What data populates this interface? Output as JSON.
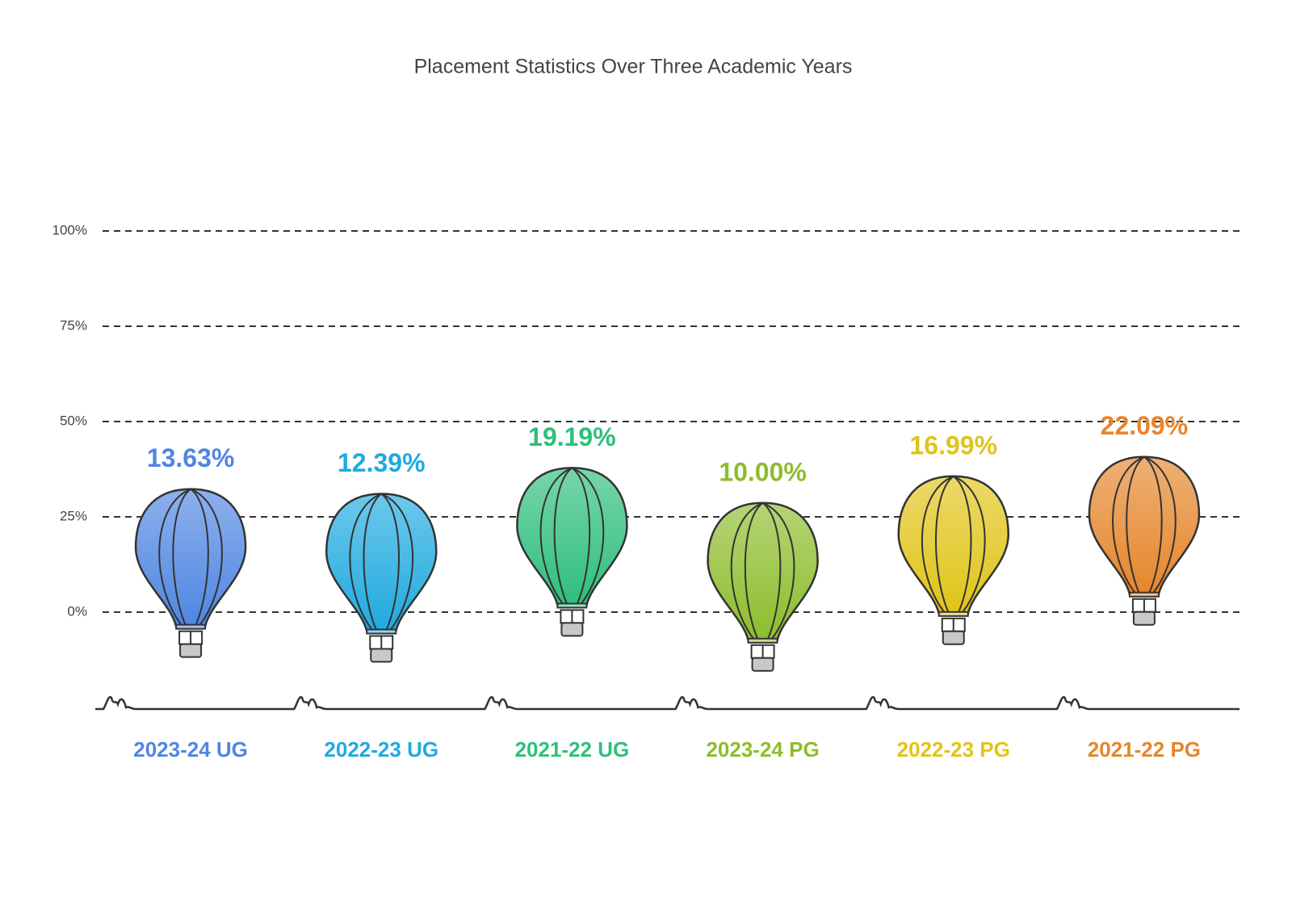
{
  "chart_data": {
    "type": "balloon",
    "title": "Placement Statistics Over Three Academic Years",
    "categories": [
      "2023-24 UG",
      "2022-23 UG",
      "2021-22 UG",
      "2023-24 PG",
      "2022-23 PG",
      "2021-22 PG"
    ],
    "values": [
      13.63,
      12.39,
      19.19,
      10.0,
      16.99,
      22.09
    ],
    "value_labels": [
      "13.63%",
      "12.39%",
      "19.19%",
      "10.00%",
      "16.99%",
      "22.09%"
    ],
    "colors": [
      "#4f86e2",
      "#1faadf",
      "#2fbf7c",
      "#8dbd2c",
      "#e0c418",
      "#e5862c"
    ],
    "ylim": [
      0,
      100
    ],
    "yticks": [
      {
        "value": 0,
        "label": "0%"
      },
      {
        "value": 25,
        "label": "25%"
      },
      {
        "value": 50,
        "label": "50%"
      },
      {
        "value": 75,
        "label": "75%"
      },
      {
        "value": 100,
        "label": "100%"
      }
    ],
    "grid": true
  }
}
